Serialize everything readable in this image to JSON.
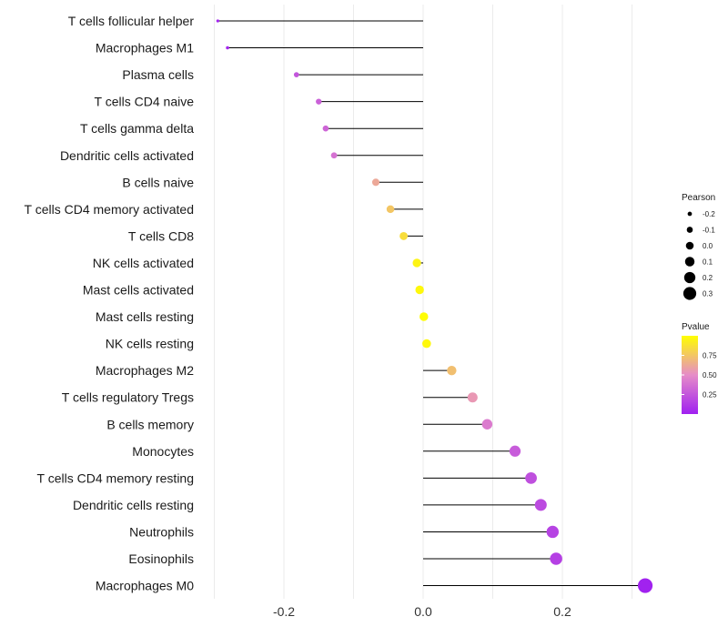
{
  "chart_data": {
    "type": "lollipop",
    "title": "",
    "xlabel": "",
    "ylabel": "",
    "xlim": [
      -0.3,
      0.32
    ],
    "x_ticks": [
      -0.2,
      0.0,
      0.2
    ],
    "x_tick_labels": [
      "-0.2",
      "0.0",
      "0.2"
    ],
    "grid": true,
    "categories": [
      "T cells follicular helper",
      "Macrophages M1",
      "Plasma cells",
      "T cells CD4 naive",
      "T cells gamma delta",
      "Dendritic cells activated",
      "B cells naive",
      "T cells CD4 memory activated",
      "T cells CD8",
      "NK cells activated",
      "Mast cells activated",
      "Mast cells resting",
      "NK cells resting",
      "Macrophages M2",
      "T cells regulatory  Tregs",
      "B cells memory",
      "Monocytes",
      "T cells CD4 memory resting",
      "Dendritic cells resting",
      "Neutrophils",
      "Eosinophils",
      "Macrophages M0"
    ],
    "values": [
      -0.295,
      -0.281,
      -0.182,
      -0.15,
      -0.14,
      -0.128,
      -0.068,
      -0.047,
      -0.028,
      -0.009,
      -0.005,
      0.001,
      0.005,
      0.041,
      0.071,
      0.092,
      0.132,
      0.155,
      0.169,
      0.186,
      0.191,
      0.319
    ],
    "pvalues": [
      0.02,
      0.03,
      0.25,
      0.3,
      0.32,
      0.38,
      0.62,
      0.75,
      0.85,
      0.95,
      0.97,
      0.99,
      0.97,
      0.72,
      0.55,
      0.42,
      0.28,
      0.22,
      0.2,
      0.16,
      0.15,
      0.01
    ],
    "legend": {
      "size_title": "Pearson",
      "size_values": [
        -0.2,
        -0.1,
        0.0,
        0.1,
        0.2,
        0.3
      ],
      "size_labels": [
        "-0.2",
        "-0.1",
        "0.0",
        "0.1",
        "0.2",
        "0.3"
      ],
      "color_title": "Pvalue",
      "color_ticks": [
        0.75,
        0.5,
        0.25
      ],
      "color_labels": [
        "0.75",
        "0.50",
        "0.25"
      ],
      "color_low": "#a020f0",
      "color_high": "#ffff00",
      "placement": "right"
    }
  }
}
